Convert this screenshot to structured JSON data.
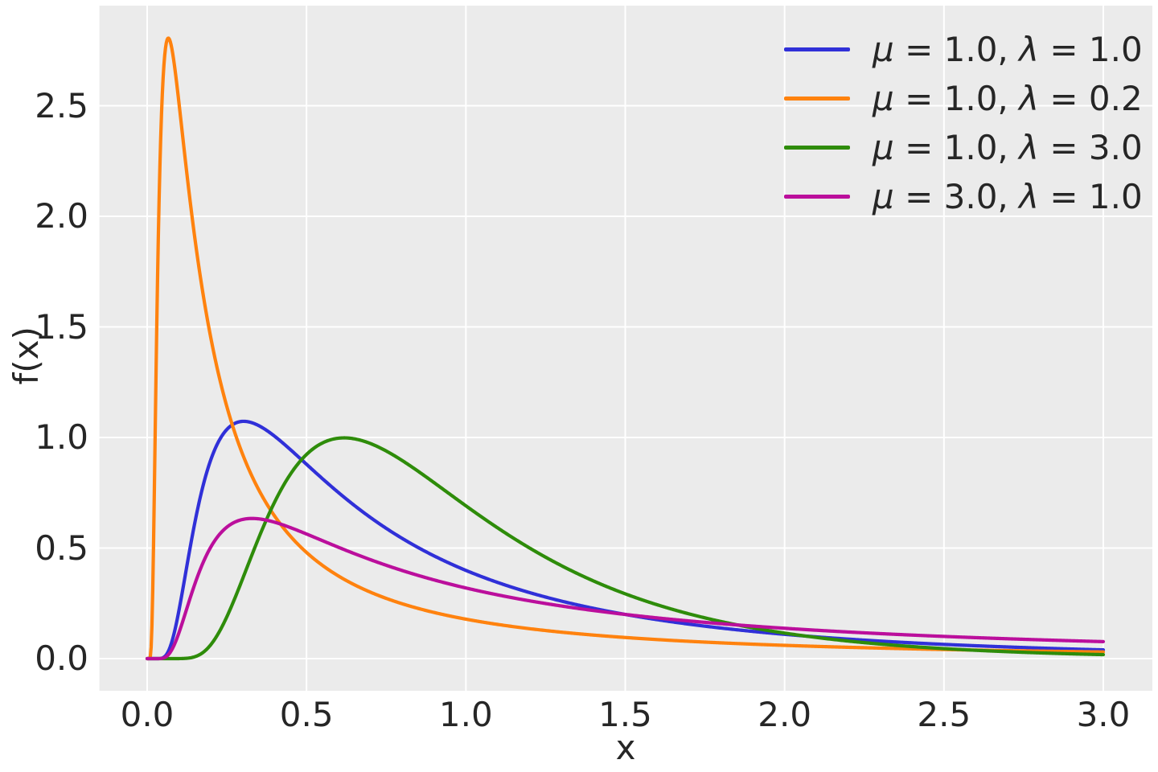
{
  "plot_style": {
    "figure_background": "#ffffff",
    "plot_background": "#ebebeb",
    "grid_color": "#ffffff",
    "text_color": "#262626"
  },
  "chart_data": {
    "type": "line",
    "title": "",
    "xlabel": "x",
    "ylabel": "f(x)",
    "function": "inverse_gaussian_pdf",
    "formula": "f(x) = sqrt(lambda/(2*pi*x^3)) * exp(-lambda*(x-mu)^2/(2*mu^2*x))",
    "x_range": [
      0,
      3
    ],
    "xlim": [
      -0.15,
      3.15
    ],
    "ylim": [
      -0.14,
      2.95
    ],
    "x_ticks": [
      0.0,
      0.5,
      1.0,
      1.5,
      2.0,
      2.5,
      3.0
    ],
    "y_ticks": [
      0.0,
      0.5,
      1.0,
      1.5,
      2.0,
      2.5
    ],
    "grid": true,
    "legend_position": "upper right",
    "legend_frame": false,
    "series": [
      {
        "label": "μ = 1.0, λ = 1.0",
        "mu": 1.0,
        "lambda": 1.0,
        "color": "#3030d8",
        "peak": {
          "x": 0.3,
          "y": 1.07
        },
        "value_at_x3": 0.039
      },
      {
        "label": "μ = 1.0, λ = 0.2",
        "mu": 1.0,
        "lambda": 0.2,
        "color": "#ff820e",
        "peak": {
          "x": 0.07,
          "y": 2.8
        },
        "value_at_x3": 0.03
      },
      {
        "label": "μ = 1.0, λ = 3.0",
        "mu": 1.0,
        "lambda": 3.0,
        "color": "#2e8c0a",
        "peak": {
          "x": 0.62,
          "y": 1.0
        },
        "value_at_x3": 0.018
      },
      {
        "label": "μ = 3.0, λ = 1.0",
        "mu": 3.0,
        "lambda": 1.0,
        "color": "#bb0f9c",
        "peak": {
          "x": 0.33,
          "y": 0.63
        },
        "value_at_x3": 0.077
      }
    ]
  }
}
